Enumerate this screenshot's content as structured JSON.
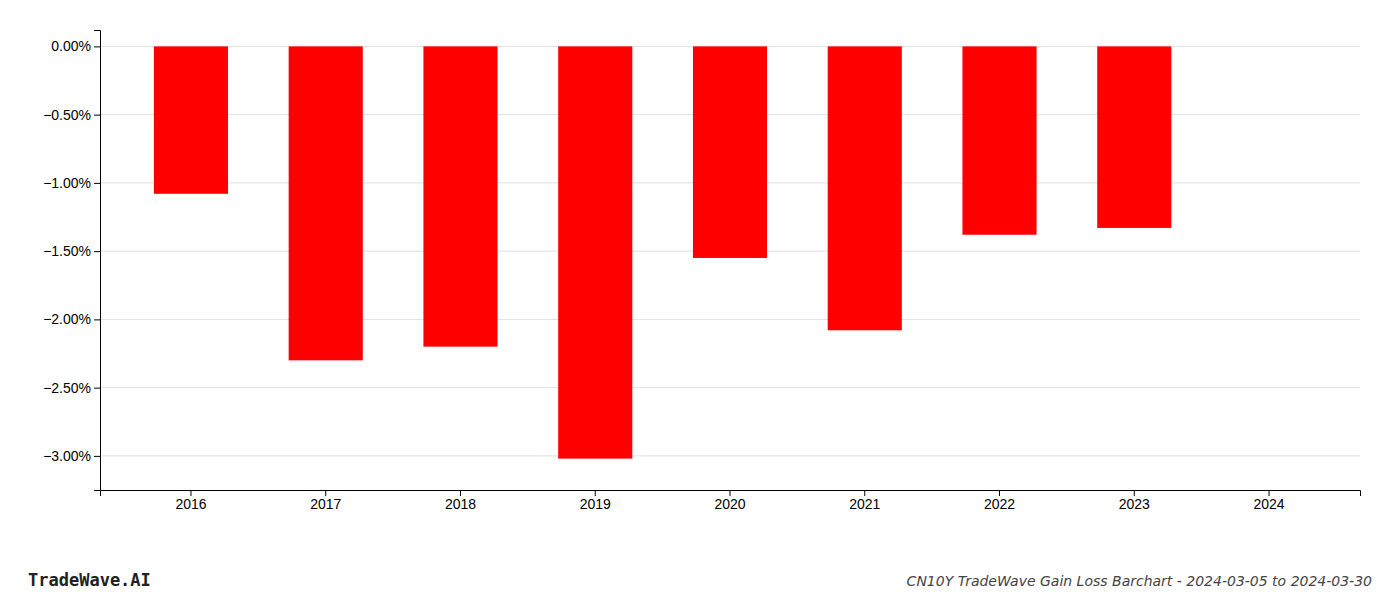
{
  "chart_data": {
    "type": "bar",
    "title": "CN10Y TradeWave Gain Loss Barchart - 2024-03-05 to 2024-03-30",
    "annotations": [
      "TradeWave.AI"
    ],
    "categories": [
      "2016",
      "2017",
      "2018",
      "2019",
      "2020",
      "2021",
      "2022",
      "2023",
      "2024"
    ],
    "values": [
      -1.08,
      -2.3,
      -2.2,
      -3.02,
      -1.55,
      -2.08,
      -1.38,
      -1.33,
      null
    ],
    "color": "#ff0000",
    "ylim": [
      -3.25,
      0.12
    ],
    "yticks": [
      {
        "value": 0.0,
        "label": "0.00%"
      },
      {
        "value": -0.5,
        "label": "−0.50%"
      },
      {
        "value": -1.0,
        "label": "−1.00%"
      },
      {
        "value": -1.5,
        "label": "−1.50%"
      },
      {
        "value": -2.0,
        "label": "−2.00%"
      },
      {
        "value": -2.5,
        "label": "−2.50%"
      },
      {
        "value": -3.0,
        "label": "−3.00%"
      }
    ],
    "grid": true
  }
}
